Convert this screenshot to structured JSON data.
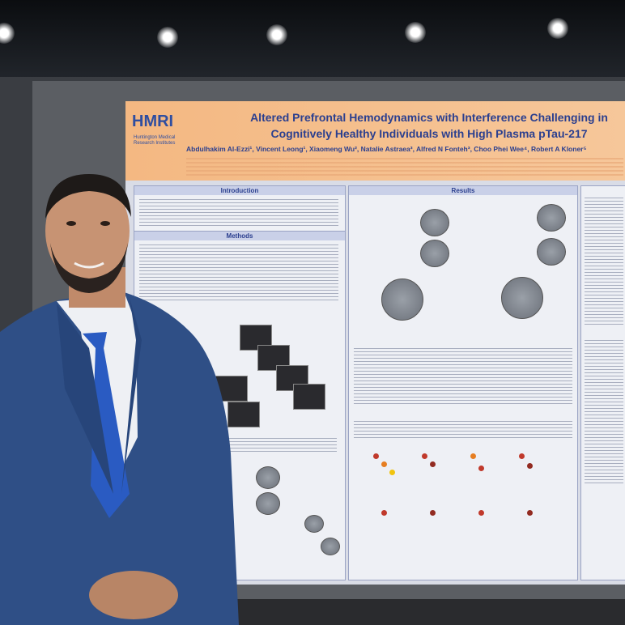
{
  "poster": {
    "logo": "HMRI",
    "logo_sub": "Huntington Medical Research Institutes",
    "title_line1": "Altered Prefrontal Hemodynamics with Interference Challenging in",
    "title_line2": "Cognitively Healthy Individuals with High Plasma pTau-217",
    "authors": "Abdulhakim Al-Ezzi¹, Vincent Leong¹, Xiaomeng Wu², Natalie Astraea³, Alfred N Fonteh³, Choo Phei Wee⁴, Robert A Kloner⁵",
    "sections": {
      "introduction": "Introduction",
      "methods": "Methods",
      "results": "Results"
    }
  }
}
